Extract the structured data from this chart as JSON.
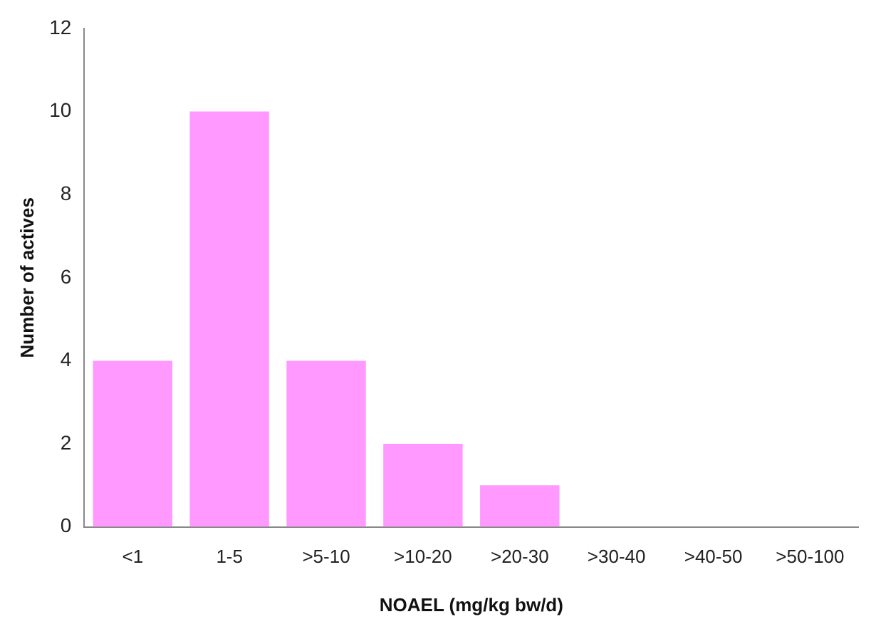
{
  "chart_data": {
    "type": "bar",
    "xlabel": "NOAEL (mg/kg bw/d)",
    "ylabel": "Number of actives",
    "categories": [
      "<1",
      "1-5",
      ">5-10",
      ">10-20",
      ">20-30",
      ">30-40",
      ">40-50",
      ">50-100"
    ],
    "values": [
      4,
      10,
      4,
      2,
      1,
      0,
      0,
      0
    ],
    "color": "#ff99ff",
    "ylim": [
      0,
      12
    ],
    "yticks": [
      0,
      2,
      4,
      6,
      8,
      10,
      12
    ],
    "grid": false,
    "legend": false
  }
}
